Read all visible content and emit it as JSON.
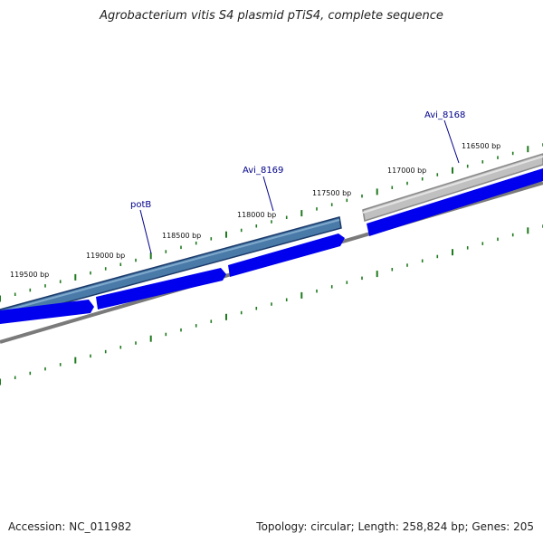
{
  "title": "Agrobacterium vitis S4 plasmid pTiS4, complete sequence",
  "footer": {
    "accession": "Accession: NC_011982",
    "topology": "Topology: circular; Length: 258,824 bp; Genes: 205"
  },
  "colors": {
    "gene_blue": "#0000ee",
    "gene_outline_blue": "#1a3a6a",
    "gene_steel": "#4a7aa8",
    "gene_gray": "#b8b8b8",
    "backbone": "#7a7a7a",
    "tick_green": "#1e7a1e",
    "label_blue": "#00008b"
  },
  "ruler_labels": [
    {
      "bp": 119500,
      "text": "119500 bp"
    },
    {
      "bp": 119000,
      "text": "119000 bp"
    },
    {
      "bp": 118500,
      "text": "118500 bp"
    },
    {
      "bp": 118000,
      "text": "118000 bp"
    },
    {
      "bp": 117500,
      "text": "117500 bp"
    },
    {
      "bp": 117000,
      "text": "117000 bp"
    },
    {
      "bp": 116500,
      "text": "116500 bp"
    }
  ],
  "gene_labels": [
    {
      "name": "potB"
    },
    {
      "name": "Avi_8169"
    },
    {
      "name": "Avi_8168"
    }
  ]
}
